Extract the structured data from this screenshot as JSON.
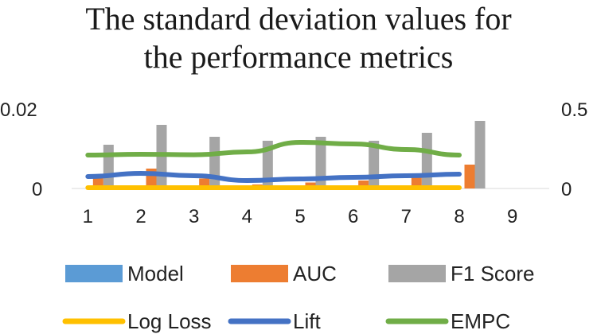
{
  "chart_data": {
    "type": "bar",
    "title_lines": [
      "The standard deviation values for",
      "the performance metrics"
    ],
    "categories": [
      "1",
      "2",
      "3",
      "4",
      "5",
      "6",
      "7",
      "8",
      "9"
    ],
    "y_left": {
      "ticks": [
        "0",
        "0.02"
      ],
      "lim": [
        0,
        0.02
      ]
    },
    "y_right": {
      "ticks": [
        "0",
        "0.5"
      ],
      "lim": [
        0,
        0.5
      ]
    },
    "bar_series": [
      {
        "name": "Model",
        "color": "#5b9bd5",
        "axis": "left",
        "values": [
          0,
          0,
          0,
          0,
          0,
          0,
          0,
          0,
          null
        ]
      },
      {
        "name": "AUC",
        "color": "#ed7d31",
        "axis": "left",
        "values": [
          0.003,
          0.005,
          0.0025,
          0.001,
          0.0015,
          0.002,
          0.0035,
          0.006,
          null
        ]
      },
      {
        "name": "F1 Score",
        "color": "#a5a5a5",
        "axis": "left",
        "values": [
          0.011,
          0.016,
          0.013,
          0.012,
          0.013,
          0.012,
          0.014,
          0.017,
          null
        ]
      }
    ],
    "line_series": [
      {
        "name": "Log Loss",
        "color": "#ffc000",
        "axis": "right",
        "values": [
          0.005,
          0.005,
          0.005,
          0.005,
          0.005,
          0.005,
          0.005,
          0.005,
          null
        ]
      },
      {
        "name": "Lift",
        "color": "#4472c4",
        "axis": "right",
        "values": [
          0.075,
          0.095,
          0.08,
          0.05,
          0.06,
          0.07,
          0.08,
          0.09,
          null
        ]
      },
      {
        "name": "EMPC",
        "color": "#70ad47",
        "axis": "right",
        "values": [
          0.21,
          0.215,
          0.212,
          0.23,
          0.29,
          0.28,
          0.245,
          0.21,
          null
        ]
      }
    ],
    "grid": false,
    "legend_position": "bottom"
  }
}
